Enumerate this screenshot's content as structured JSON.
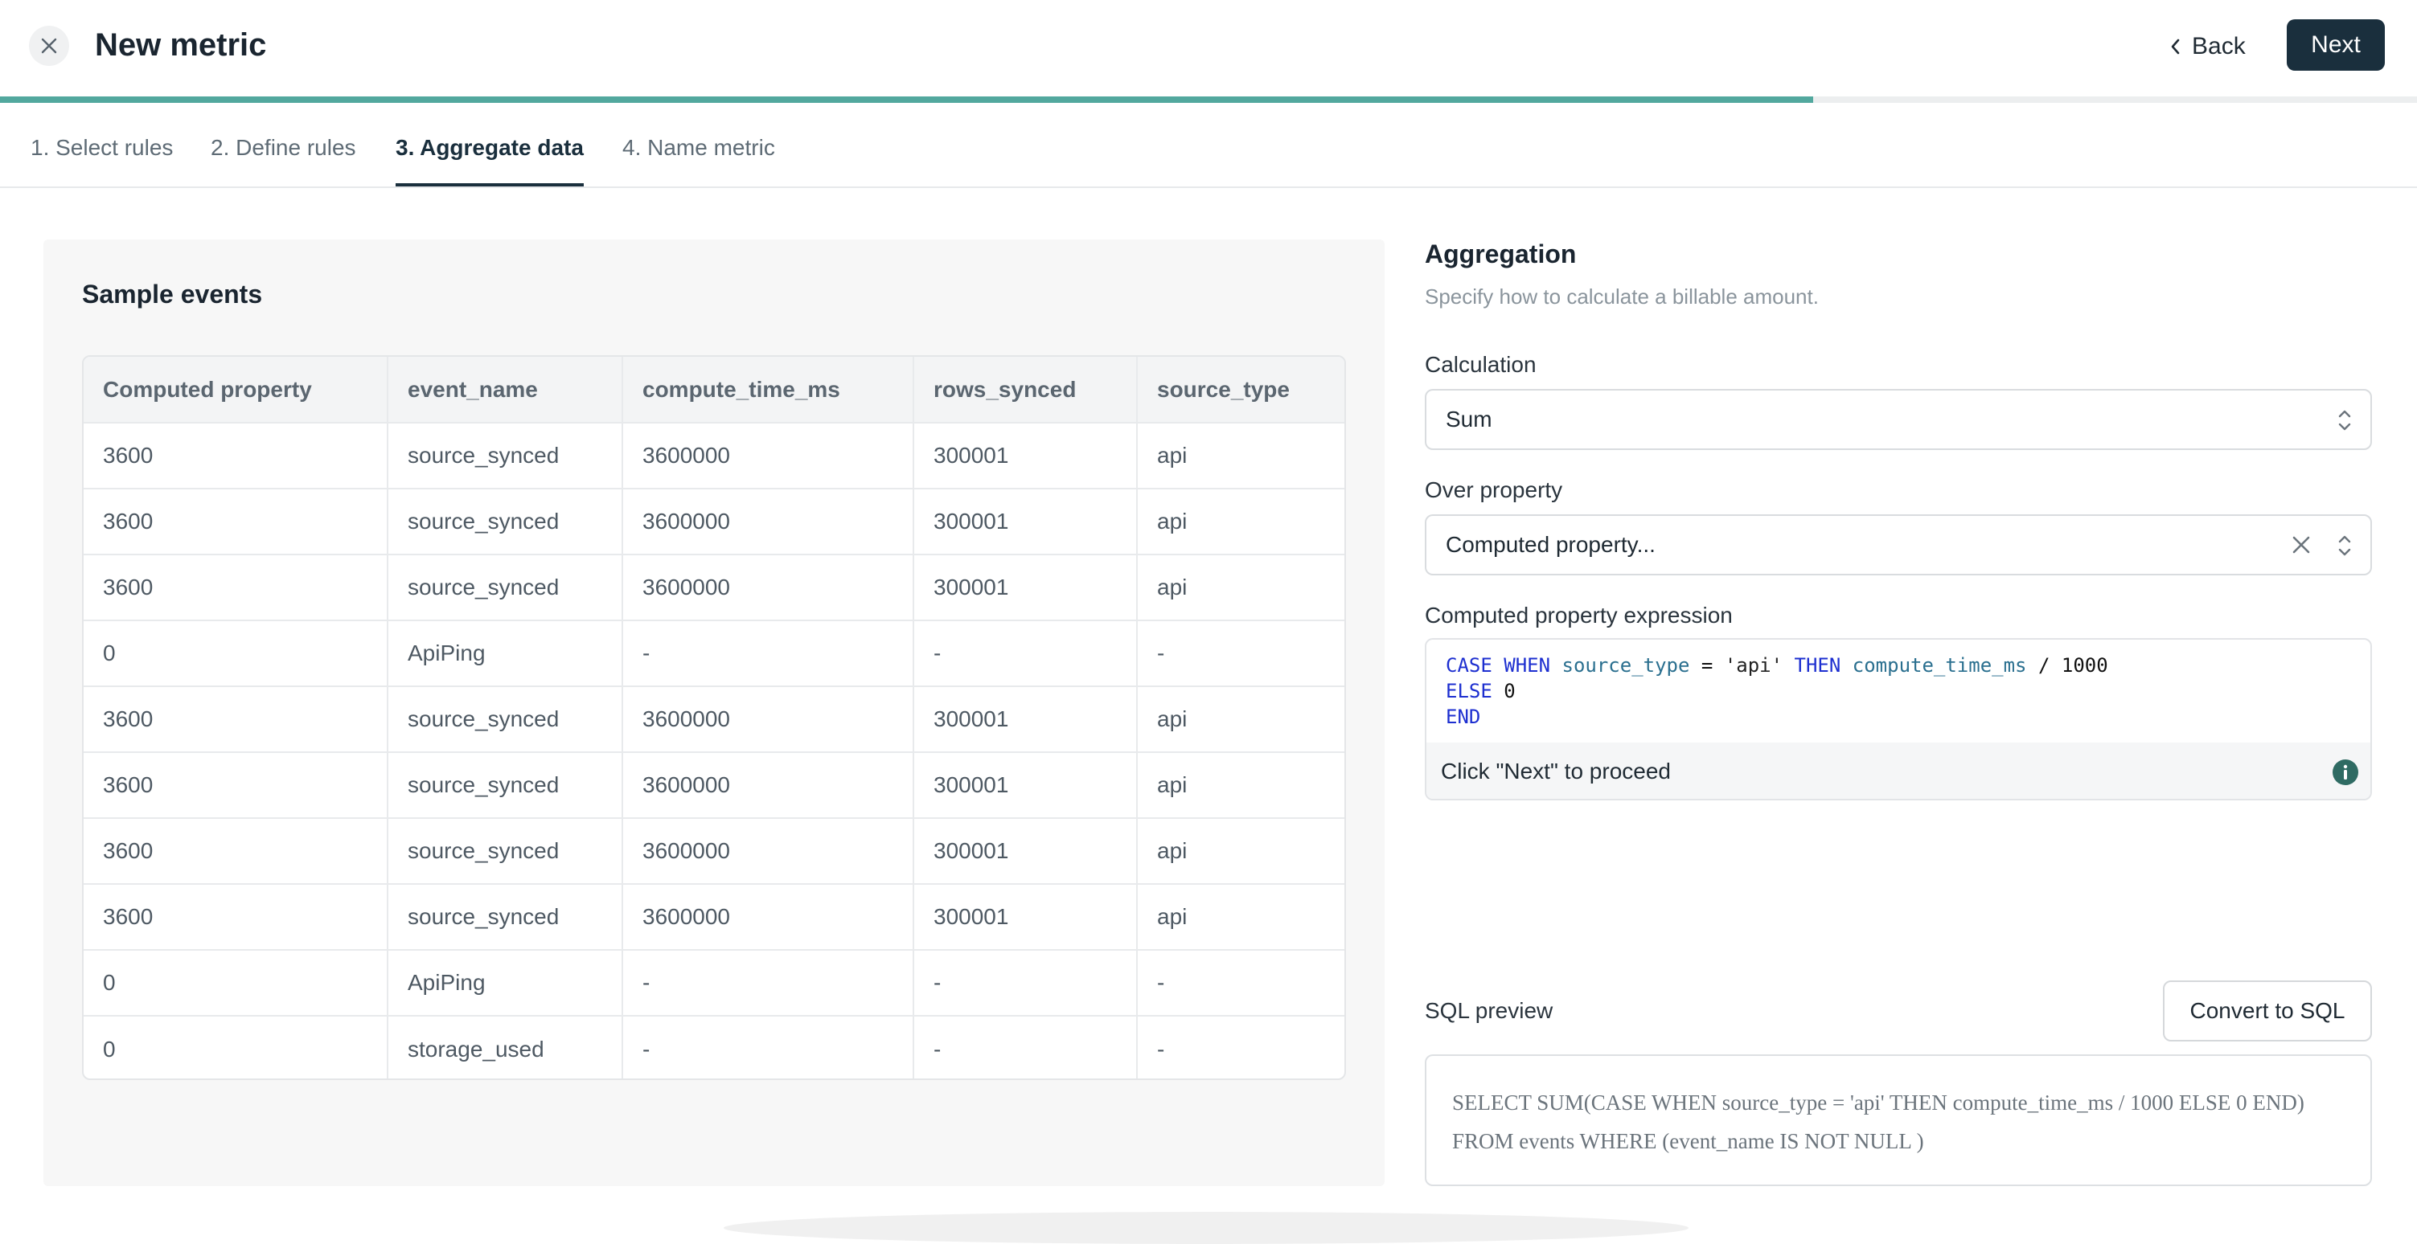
{
  "header": {
    "title": "New metric",
    "back_label": "Back",
    "next_label": "Next",
    "progress_fraction": 0.75
  },
  "tabs": [
    {
      "label": "1. Select rules",
      "active": false
    },
    {
      "label": "2. Define rules",
      "active": false
    },
    {
      "label": "3. Aggregate data",
      "active": true
    },
    {
      "label": "4. Name metric",
      "active": false
    }
  ],
  "sample_events": {
    "title": "Sample events",
    "columns": [
      "Computed property",
      "event_name",
      "compute_time_ms",
      "rows_synced",
      "source_type"
    ],
    "rows": [
      [
        "3600",
        "source_synced",
        "3600000",
        "300001",
        "api"
      ],
      [
        "3600",
        "source_synced",
        "3600000",
        "300001",
        "api"
      ],
      [
        "3600",
        "source_synced",
        "3600000",
        "300001",
        "api"
      ],
      [
        "0",
        "ApiPing",
        "-",
        "-",
        "-"
      ],
      [
        "3600",
        "source_synced",
        "3600000",
        "300001",
        "api"
      ],
      [
        "3600",
        "source_synced",
        "3600000",
        "300001",
        "api"
      ],
      [
        "3600",
        "source_synced",
        "3600000",
        "300001",
        "api"
      ],
      [
        "3600",
        "source_synced",
        "3600000",
        "300001",
        "api"
      ],
      [
        "0",
        "ApiPing",
        "-",
        "-",
        "-"
      ],
      [
        "0",
        "storage_used",
        "-",
        "-",
        "-"
      ]
    ]
  },
  "aggregation": {
    "title": "Aggregation",
    "description": "Specify how to calculate a billable amount.",
    "calculation_label": "Calculation",
    "calculation_value": "Sum",
    "over_property_label": "Over property",
    "over_property_value": "Computed property...",
    "expression_label": "Computed property expression",
    "expression": {
      "l1_case": "CASE",
      "l1_when": "WHEN",
      "l1_col": "source_type",
      "l1_eq": " = ",
      "l1_str": "'api'",
      "l1_then": "THEN",
      "l1_col2": "compute_time_ms",
      "l1_div": " / 1000",
      "l2_else": "ELSE",
      "l2_val": " 0",
      "l3_end": "END"
    },
    "expression_hint": "Click \"Next\" to proceed",
    "sql_label": "SQL preview",
    "convert_label": "Convert to SQL",
    "sql_line1": "SELECT SUM(CASE WHEN source_type = 'api' THEN compute_time_ms / 1000 ELSE 0 END)",
    "sql_line2": "FROM events WHERE (event_name IS NOT NULL )"
  },
  "icons": {
    "close": "close-icon",
    "back": "chevron-left-icon",
    "updown": "chevron-updown-icon",
    "clear": "clear-icon",
    "info": "info-icon"
  },
  "colors": {
    "accent": "#52a89e",
    "primary_button": "#1a2f3d",
    "info_icon": "#2f6b63"
  }
}
